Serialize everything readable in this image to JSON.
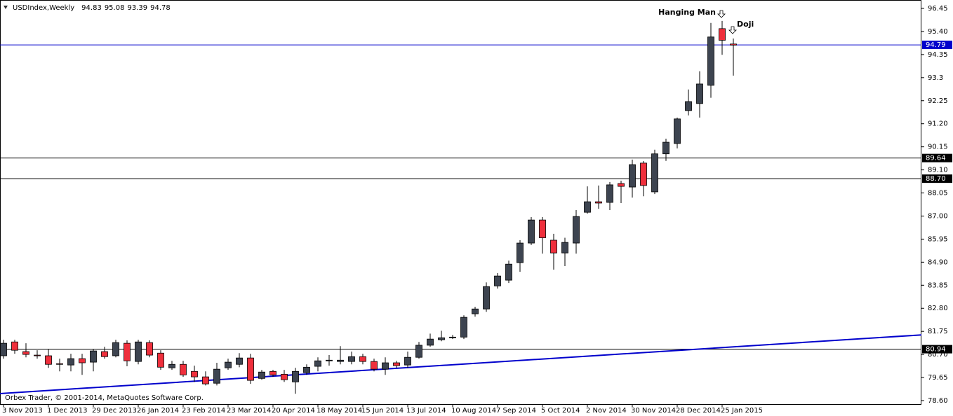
{
  "chart_data": {
    "type": "candlestick",
    "symbol": "USDIndex,Weekly",
    "header_values": [
      94.83,
      95.08,
      93.39,
      94.78
    ],
    "footer": "Orbex Trader, © 2001-2014, MetaQuotes Software Corp.",
    "annotations": [
      "Hanging Man",
      "Doji"
    ],
    "categories": [
      "3 Nov 2013",
      null,
      null,
      null,
      "1 Dec 2013",
      null,
      null,
      null,
      "29 Dec 2013",
      null,
      null,
      null,
      "26 Jan 2014",
      null,
      null,
      null,
      "23 Feb 2014",
      null,
      null,
      null,
      "23 Mar 2014",
      null,
      null,
      null,
      "20 Apr 2014",
      null,
      null,
      null,
      "18 May 2014",
      null,
      null,
      null,
      "15 Jun 2014",
      null,
      null,
      null,
      "13 Jul 2014",
      null,
      null,
      null,
      "10 Aug 2014",
      null,
      null,
      null,
      "7 Sep 2014",
      null,
      null,
      null,
      "5 Oct 2014",
      null,
      null,
      null,
      "2 Nov 2014",
      null,
      null,
      null,
      "30 Nov 2014",
      null,
      null,
      null,
      "28 Dec 2014",
      null,
      null,
      null,
      "25 Jan 2015",
      null
    ],
    "open": [
      80.64,
      81.27,
      80.83,
      80.67,
      80.64,
      80.28,
      80.22,
      80.51,
      80.35,
      80.83,
      80.64,
      81.21,
      80.38,
      81.24,
      80.76,
      80.09,
      80.25,
      79.93,
      79.68,
      79.39,
      80.09,
      80.25,
      80.54,
      79.61,
      79.93,
      79.8,
      79.45,
      79.87,
      80.16,
      80.41,
      80.38,
      80.38,
      80.6,
      80.38,
      80.03,
      80.32,
      80.22,
      80.57,
      81.12,
      81.37,
      81.46,
      81.49,
      82.55,
      82.77,
      83.82,
      84.08,
      84.88,
      85.77,
      86.82,
      85.9,
      85.32,
      85.77,
      87.17,
      87.65,
      87.62,
      88.48,
      88.32,
      89.41,
      88.1,
      89.83,
      90.3,
      91.8,
      92.12,
      92.95,
      95.53,
      94.83
    ],
    "high": [
      81.37,
      81.37,
      81.21,
      80.89,
      80.95,
      80.51,
      80.73,
      80.73,
      80.95,
      81.05,
      81.37,
      81.34,
      81.37,
      81.34,
      80.89,
      80.41,
      80.41,
      80.19,
      79.93,
      80.32,
      80.51,
      80.76,
      80.73,
      80.0,
      80.0,
      80.0,
      80.09,
      80.25,
      80.57,
      80.67,
      81.08,
      80.83,
      80.73,
      80.51,
      80.57,
      80.41,
      80.83,
      81.27,
      81.65,
      81.78,
      81.59,
      82.48,
      82.87,
      83.98,
      84.4,
      84.97,
      85.9,
      86.95,
      86.95,
      86.19,
      86.01,
      87.27,
      88.35,
      88.39,
      88.55,
      88.61,
      89.57,
      89.5,
      90.02,
      90.52,
      91.48,
      92.76,
      93.59,
      95.79,
      95.88,
      95.08
    ],
    "low": [
      80.51,
      80.73,
      80.57,
      80.51,
      80.09,
      79.93,
      79.93,
      79.77,
      79.93,
      80.51,
      80.57,
      80.16,
      80.25,
      80.57,
      80.0,
      80.0,
      79.68,
      79.45,
      79.29,
      79.29,
      80.0,
      80.12,
      79.36,
      79.55,
      79.68,
      79.45,
      78.91,
      79.77,
      79.93,
      80.19,
      80.25,
      80.25,
      80.25,
      79.93,
      79.77,
      80.09,
      80.09,
      80.51,
      81.05,
      81.3,
      81.4,
      81.4,
      82.42,
      82.64,
      83.7,
      83.95,
      84.46,
      85.68,
      85.29,
      84.56,
      84.72,
      85.29,
      87.11,
      87.33,
      87.27,
      87.59,
      87.84,
      87.9,
      88.0,
      89.51,
      90.08,
      91.58,
      91.48,
      92.38,
      94.34,
      93.39
    ],
    "close": [
      81.21,
      80.89,
      80.7,
      80.64,
      80.25,
      80.25,
      80.51,
      80.32,
      80.86,
      80.6,
      81.24,
      80.41,
      81.27,
      80.67,
      80.12,
      80.25,
      79.77,
      79.68,
      79.36,
      80.03,
      80.35,
      80.54,
      79.52,
      79.9,
      79.77,
      79.55,
      79.93,
      80.12,
      80.41,
      80.44,
      80.44,
      80.6,
      80.38,
      80.03,
      80.32,
      80.19,
      80.57,
      81.12,
      81.4,
      81.46,
      81.49,
      82.39,
      82.77,
      83.79,
      84.27,
      84.81,
      85.77,
      86.82,
      86.01,
      85.32,
      85.8,
      86.98,
      87.65,
      87.59,
      88.42,
      88.35,
      89.34,
      88.39,
      89.83,
      90.36,
      91.42,
      92.21,
      93.01,
      95.15,
      95.0,
      94.78
    ],
    "up_color": "#3d4450",
    "down_color": "#ef2f3c",
    "ylim": [
      78.6,
      96.45
    ],
    "yticks": [
      96.45,
      {
        "value": 95.4,
        "label": "95.40"
      },
      94.35,
      93.3,
      92.25,
      {
        "value": 91.2,
        "label": "91.20"
      },
      90.15,
      {
        "value": 89.1,
        "label": "89.10"
      },
      88.05,
      {
        "value": 87.0,
        "label": "87.00"
      },
      85.95,
      {
        "value": 84.9,
        "label": "84.90"
      },
      83.85,
      {
        "value": 82.8,
        "label": "82.80"
      },
      81.75,
      {
        "value": 80.7,
        "label": "80.70"
      },
      79.65,
      {
        "value": 78.6,
        "label": "78.60"
      }
    ],
    "levels": [
      94.79,
      89.64,
      {
        "value": 88.7,
        "label": "88.70"
      },
      80.94
    ],
    "level_colors": [
      "#0000cc",
      "#000000",
      "#000000",
      "#000000"
    ],
    "trendline": {
      "values": [
        78.92,
        81.59
      ],
      "color": "#0000cc"
    }
  }
}
